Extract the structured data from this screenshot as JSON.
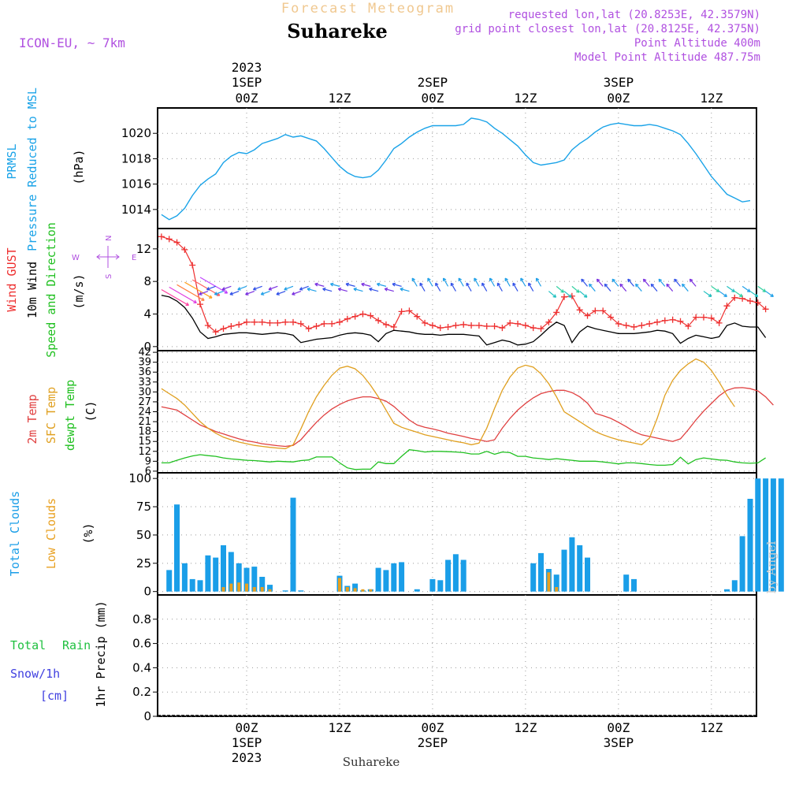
{
  "header": {
    "product": "Forecast Meteogram",
    "location": "Suhareke",
    "model": "ICON-EU, ~ 7km",
    "requested": "requested lon,lat (20.8253E, 42.3579N)",
    "gridpoint": "grid point closest lon,lat (20.8125E, 42.375N)",
    "point_alt": "Point Altitude 400m",
    "model_alt": "Model Point Altitude 487.75m"
  },
  "time_axis": {
    "year": "2023",
    "ticks": [
      {
        "t": 0,
        "label": "00Z",
        "date": "1SEP",
        "year": "2023"
      },
      {
        "t": 12,
        "label": "12Z",
        "date": "",
        "year": ""
      },
      {
        "t": 24,
        "label": "00Z",
        "date": "2SEP",
        "year": ""
      },
      {
        "t": 36,
        "label": "12Z",
        "date": "",
        "year": ""
      },
      {
        "t": 48,
        "label": "00Z",
        "date": "3SEP",
        "year": ""
      },
      {
        "t": 60,
        "label": "12Z",
        "date": "",
        "year": ""
      }
    ]
  },
  "footer": {
    "location": "Suhareke",
    "credit": "by Angel"
  },
  "colors": {
    "pressure": "#1aa3e8",
    "gust": "#ee3030",
    "wind": "#000000",
    "t2m": "#e04040",
    "sfc": "#e0a020",
    "dewpt": "#20c020",
    "cloud": "#1a9ee8",
    "lowcloud": "#e8a020",
    "label_purple": "#b050e0",
    "label_green": "#20c040",
    "label_blue": "#4040e0"
  },
  "chart_data": [
    {
      "type": "line",
      "id": "pressure",
      "ylabel": [
        "PRMSL",
        "Pressure Reduced to MSL"
      ],
      "unit": "(hPa)",
      "ylim": [
        1012.5,
        1022
      ],
      "yticks": [
        1014,
        1016,
        1018,
        1020
      ],
      "grid": true,
      "x_start": -11,
      "x_step": 1,
      "series": [
        {
          "name": "PRMSL",
          "values": [
            1013.6,
            1013.2,
            1013.5,
            1014.1,
            1015.1,
            1015.9,
            1016.4,
            1016.8,
            1017.7,
            1018.2,
            1018.5,
            1018.4,
            1018.7,
            1019.2,
            1019.4,
            1019.6,
            1019.9,
            1019.7,
            1019.8,
            1019.6,
            1019.4,
            1018.8,
            1018.1,
            1017.4,
            1016.9,
            1016.6,
            1016.5,
            1016.6,
            1017.1,
            1017.9,
            1018.8,
            1019.2,
            1019.7,
            1020.1,
            1020.4,
            1020.6,
            1020.6,
            1020.6,
            1020.6,
            1020.7,
            1021.2,
            1021.1,
            1020.9,
            1020.4,
            1020.0,
            1019.5,
            1019.0,
            1018.3,
            1017.7,
            1017.5,
            1017.6,
            1017.7,
            1017.9,
            1018.7,
            1019.2,
            1019.6,
            1020.1,
            1020.5,
            1020.7,
            1020.8,
            1020.7,
            1020.6,
            1020.6,
            1020.7,
            1020.6,
            1020.4,
            1020.2,
            1019.9,
            1019.2,
            1018.4,
            1017.5,
            1016.6,
            1015.9,
            1015.2,
            1014.9,
            1014.6,
            1014.7
          ]
        }
      ]
    },
    {
      "type": "line",
      "id": "wind",
      "ylabel": [
        "Wind GUST",
        "10m Wind",
        "Speed and Direction"
      ],
      "unit": "(m/s)",
      "compass": {
        "n": "N",
        "s": "S",
        "w": "W",
        "e": "E"
      },
      "ylim": [
        -0.5,
        14.5
      ],
      "yticks": [
        0,
        4,
        8,
        12
      ],
      "grid": true,
      "x_start": -11,
      "x_step": 1,
      "series": [
        {
          "name": "Wind GUST",
          "values": [
            13.5,
            13.2,
            12.8,
            11.9,
            10.0,
            5.2,
            2.6,
            1.8,
            2.2,
            2.5,
            2.7,
            3.0,
            3.0,
            3.0,
            2.9,
            2.9,
            3.0,
            3.0,
            2.8,
            2.2,
            2.5,
            2.8,
            2.8,
            3.0,
            3.4,
            3.7,
            4.0,
            3.8,
            3.2,
            2.7,
            2.4,
            4.3,
            4.4,
            3.7,
            2.9,
            2.6,
            2.3,
            2.4,
            2.6,
            2.7,
            2.6,
            2.6,
            2.5,
            2.5,
            2.3,
            2.9,
            2.8,
            2.6,
            2.3,
            2.2,
            3.0,
            4.2,
            6.1,
            6.2,
            4.5,
            3.8,
            4.4,
            4.4,
            3.6,
            2.8,
            2.6,
            2.4,
            2.6,
            2.8,
            3.0,
            3.2,
            3.3,
            3.1,
            2.5,
            3.6,
            3.6,
            3.5,
            2.9,
            5.0,
            6.0,
            5.9,
            5.6,
            5.4,
            4.6
          ]
        },
        {
          "name": "10m Wind",
          "values": [
            6.3,
            6.1,
            5.6,
            4.8,
            3.5,
            1.8,
            1.0,
            1.2,
            1.5,
            1.6,
            1.7,
            1.7,
            1.6,
            1.5,
            1.6,
            1.7,
            1.6,
            1.4,
            0.5,
            0.7,
            0.9,
            1.0,
            1.1,
            1.4,
            1.6,
            1.7,
            1.6,
            1.4,
            0.6,
            1.6,
            2.0,
            1.9,
            1.8,
            1.6,
            1.5,
            1.5,
            1.4,
            1.5,
            1.5,
            1.5,
            1.4,
            1.3,
            0.2,
            0.5,
            0.8,
            0.6,
            0.2,
            0.3,
            0.6,
            1.4,
            2.3,
            3.0,
            2.6,
            0.5,
            1.8,
            2.5,
            2.2,
            2.0,
            1.8,
            1.6,
            1.6,
            1.6,
            1.7,
            1.8,
            2.0,
            1.9,
            1.6,
            0.4,
            1.0,
            1.4,
            1.2,
            1.0,
            1.2,
            2.6,
            2.9,
            2.5,
            2.4,
            2.4,
            1.1
          ]
        }
      ]
    },
    {
      "type": "line",
      "id": "temperature",
      "ylabel": [
        "2m Temp",
        "SFC Temp",
        "dewpt Temp"
      ],
      "unit": "(C)",
      "ylim": [
        5.5,
        42.5
      ],
      "yticks": [
        6,
        9,
        12,
        15,
        18,
        21,
        24,
        27,
        30,
        33,
        36,
        39,
        42
      ],
      "grid": true,
      "x_start": -11,
      "x_step": 1,
      "series": [
        {
          "name": "2m Temp",
          "values": [
            25.5,
            25.0,
            24.5,
            23.0,
            21.5,
            20.0,
            19.0,
            18.0,
            17.3,
            16.5,
            15.8,
            15.2,
            14.8,
            14.3,
            14.0,
            13.7,
            13.5,
            13.8,
            15.5,
            18.2,
            20.8,
            23.0,
            24.8,
            26.2,
            27.3,
            28.0,
            28.5,
            28.5,
            28.0,
            27.2,
            25.6,
            23.5,
            21.5,
            20.0,
            19.3,
            18.8,
            18.2,
            17.5,
            17.0,
            16.5,
            15.9,
            15.5,
            15.0,
            15.5,
            19.0,
            22.0,
            24.5,
            26.5,
            28.2,
            29.5,
            30.1,
            30.5,
            30.5,
            29.8,
            28.5,
            26.6,
            23.5,
            22.8,
            22.0,
            20.8,
            19.5,
            18.0,
            17.0,
            16.5,
            16.0,
            15.5,
            15.0,
            15.8,
            18.5,
            21.5,
            24.2,
            26.5,
            28.8,
            30.5,
            31.2,
            31.3,
            31.0,
            30.3,
            28.5,
            26.0
          ]
        },
        {
          "name": "SFC Temp",
          "values": [
            31.0,
            29.5,
            28.0,
            26.0,
            23.5,
            21.0,
            19.0,
            17.5,
            16.3,
            15.5,
            14.8,
            14.3,
            13.8,
            13.5,
            13.2,
            13.0,
            12.8,
            14.0,
            18.8,
            24.0,
            28.5,
            32.0,
            35.0,
            37.2,
            37.8,
            37.0,
            35.0,
            32.0,
            28.5,
            24.5,
            20.5,
            19.3,
            18.5,
            17.8,
            17.0,
            16.5,
            16.0,
            15.5,
            15.0,
            14.6,
            14.0,
            14.5,
            19.0,
            25.0,
            30.5,
            34.5,
            37.2,
            38.1,
            37.5,
            35.5,
            32.5,
            28.5,
            24.0,
            22.5,
            21.0,
            19.5,
            18.0,
            17.0,
            16.2,
            15.5,
            15.0,
            14.5,
            14.0,
            16.0,
            22.0,
            29.0,
            33.5,
            36.5,
            38.5,
            40.0,
            39.0,
            36.5,
            33.0,
            29.0,
            25.5
          ]
        },
        {
          "name": "dewpt Temp",
          "values": [
            8.5,
            8.5,
            9.3,
            10.0,
            10.6,
            11.0,
            10.7,
            10.5,
            10.0,
            9.7,
            9.5,
            9.3,
            9.2,
            9.0,
            8.8,
            9.0,
            8.9,
            8.8,
            9.2,
            9.4,
            10.3,
            10.3,
            10.3,
            8.5,
            7.0,
            6.5,
            6.6,
            6.6,
            8.8,
            8.3,
            8.3,
            10.5,
            12.5,
            12.2,
            11.8,
            12.0,
            12.0,
            11.9,
            11.8,
            11.6,
            11.2,
            11.2,
            12.0,
            11.1,
            11.8,
            11.6,
            10.5,
            10.5,
            10.0,
            9.8,
            9.5,
            9.8,
            9.5,
            9.3,
            9.0,
            9.0,
            9.0,
            8.8,
            8.5,
            8.2,
            8.5,
            8.5,
            8.3,
            8.0,
            7.8,
            7.8,
            8.0,
            10.2,
            8.2,
            9.5,
            10.0,
            9.7,
            9.4,
            9.3,
            8.8,
            8.5,
            8.4,
            8.5,
            10.0
          ]
        }
      ]
    },
    {
      "type": "bar",
      "id": "clouds",
      "ylabel": [
        "Total Clouds",
        "Low Clouds"
      ],
      "unit": "(%)",
      "ylim": [
        -3,
        105
      ],
      "yticks": [
        0,
        25,
        50,
        75,
        100
      ],
      "grid": true,
      "x_start": -10,
      "x_step": 1,
      "series": [
        {
          "name": "Total Clouds",
          "values": [
            19,
            77,
            25,
            11,
            10,
            32,
            30,
            41,
            35,
            25,
            21,
            22,
            13,
            6,
            0,
            1,
            83,
            1,
            0,
            0,
            0,
            0,
            14,
            5,
            7,
            1,
            2,
            21,
            19,
            25,
            26,
            0,
            2,
            0,
            11,
            10,
            28,
            33,
            28,
            0,
            0,
            0,
            0,
            0,
            0,
            0,
            0,
            25,
            34,
            20,
            15,
            37,
            48,
            41,
            30,
            0,
            0,
            0,
            0,
            15,
            11,
            0,
            0,
            0,
            0,
            0,
            0,
            0,
            0,
            0,
            0,
            0,
            2,
            10,
            49,
            82,
            100,
            100,
            100,
            100
          ]
        },
        {
          "name": "Low Clouds",
          "values": [
            0,
            0,
            0,
            0,
            0,
            0,
            0,
            4,
            7,
            8,
            7,
            4,
            4,
            2,
            0,
            0,
            0,
            0,
            0,
            0,
            0,
            0,
            12,
            4,
            3,
            2,
            2,
            0,
            0,
            0,
            0,
            0,
            0,
            0,
            0,
            0,
            0,
            0,
            0,
            0,
            0,
            0,
            0,
            0,
            0,
            0,
            0,
            0,
            0,
            17,
            4,
            0,
            0,
            0,
            0,
            0,
            0,
            0,
            0,
            0,
            0,
            0,
            0,
            0,
            0,
            0,
            0,
            0,
            0,
            0,
            0,
            0,
            0,
            0,
            0,
            0,
            0,
            0,
            0,
            0
          ]
        }
      ]
    },
    {
      "type": "bar",
      "id": "precip",
      "ylabel": [
        "Total",
        "Rain",
        "Snow/1h",
        "[cm]"
      ],
      "unit": "1hr Precip (mm)",
      "ylim": [
        0,
        1.0
      ],
      "yticks": [
        0,
        0.2,
        0.4,
        0.6,
        0.8
      ],
      "yticklabels": [
        "0",
        "0.2",
        "0.4",
        "0.6",
        "0.8"
      ],
      "grid": true,
      "series": [
        {
          "name": "Total",
          "values": []
        }
      ]
    }
  ]
}
